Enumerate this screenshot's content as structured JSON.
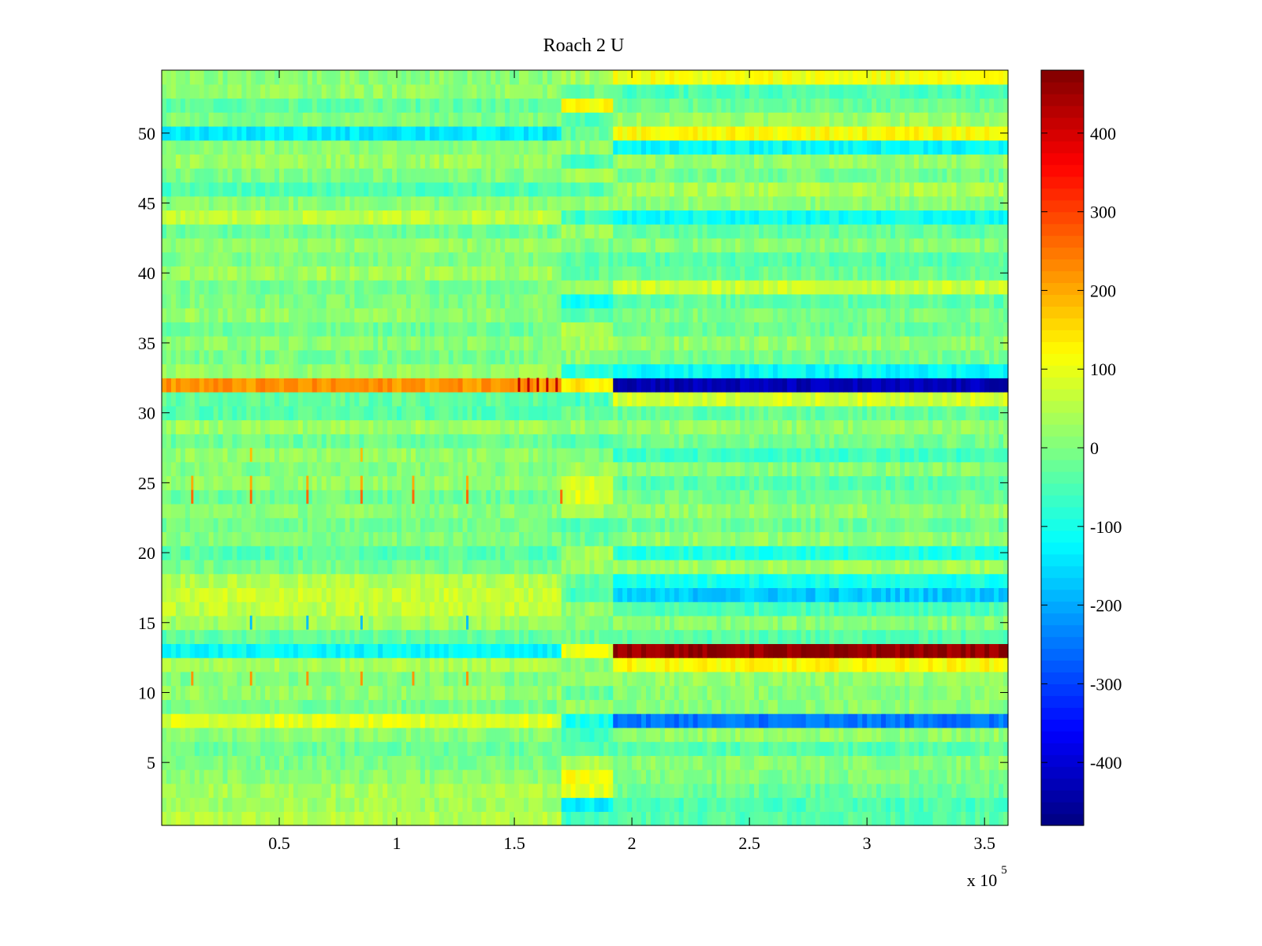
{
  "chart_data": {
    "type": "heatmap",
    "title": "Roach 2 U",
    "xlabel": "",
    "ylabel": "",
    "x_multiplier": "x 10",
    "x_multiplier_exponent": "5",
    "xlim": [
      0,
      3.6
    ],
    "ylim": [
      0.5,
      54.5
    ],
    "rows": 54,
    "x_ticks": [
      {
        "value": 0.5,
        "label": "0.5"
      },
      {
        "value": 1,
        "label": "1"
      },
      {
        "value": 1.5,
        "label": "1.5"
      },
      {
        "value": 2,
        "label": "2"
      },
      {
        "value": 2.5,
        "label": "2.5"
      },
      {
        "value": 3,
        "label": "3"
      },
      {
        "value": 3.5,
        "label": "3.5"
      }
    ],
    "y_ticks": [
      {
        "value": 5,
        "label": "5"
      },
      {
        "value": 10,
        "label": "10"
      },
      {
        "value": 15,
        "label": "15"
      },
      {
        "value": 20,
        "label": "20"
      },
      {
        "value": 25,
        "label": "25"
      },
      {
        "value": 30,
        "label": "30"
      },
      {
        "value": 35,
        "label": "35"
      },
      {
        "value": 40,
        "label": "40"
      },
      {
        "value": 45,
        "label": "45"
      },
      {
        "value": 50,
        "label": "50"
      }
    ],
    "colorbar": {
      "colormap": "jet",
      "clim": [
        -480,
        480
      ],
      "ticks": [
        {
          "value": 400,
          "label": "400"
        },
        {
          "value": 300,
          "label": "300"
        },
        {
          "value": 200,
          "label": "200"
        },
        {
          "value": 100,
          "label": "100"
        },
        {
          "value": 0,
          "label": "0"
        },
        {
          "value": -100,
          "label": "-100"
        },
        {
          "value": -200,
          "label": "-200"
        },
        {
          "value": -300,
          "label": "-300"
        },
        {
          "value": -400,
          "label": "-400"
        }
      ]
    },
    "segment_breaks": [
      0,
      1.71,
      1.92,
      3.6
    ],
    "row_levels": [
      {
        "row": 1,
        "levels": [
          50,
          -60,
          -40
        ]
      },
      {
        "row": 2,
        "levels": [
          30,
          -130,
          -50
        ]
      },
      {
        "row": 3,
        "levels": [
          40,
          100,
          -20
        ]
      },
      {
        "row": 4,
        "levels": [
          10,
          110,
          0
        ]
      },
      {
        "row": 5,
        "levels": [
          0,
          40,
          10
        ]
      },
      {
        "row": 6,
        "levels": [
          -20,
          -40,
          -40
        ]
      },
      {
        "row": 7,
        "levels": [
          10,
          -60,
          20
        ]
      },
      {
        "row": 8,
        "levels": [
          90,
          -100,
          -250
        ]
      },
      {
        "row": 9,
        "levels": [
          -10,
          20,
          10
        ]
      },
      {
        "row": 10,
        "levels": [
          20,
          -30,
          10
        ]
      },
      {
        "row": 11,
        "levels": [
          0,
          30,
          20
        ]
      },
      {
        "row": 12,
        "levels": [
          40,
          10,
          120
        ]
      },
      {
        "row": 13,
        "levels": [
          -120,
          100,
          460
        ]
      },
      {
        "row": 14,
        "levels": [
          -30,
          -20,
          -40
        ]
      },
      {
        "row": 15,
        "levels": [
          30,
          0,
          10
        ]
      },
      {
        "row": 16,
        "levels": [
          60,
          20,
          -50
        ]
      },
      {
        "row": 17,
        "levels": [
          70,
          -50,
          -170
        ]
      },
      {
        "row": 18,
        "levels": [
          50,
          -30,
          -100
        ]
      },
      {
        "row": 19,
        "levels": [
          -10,
          20,
          30
        ]
      },
      {
        "row": 20,
        "levels": [
          -40,
          30,
          -90
        ]
      },
      {
        "row": 21,
        "levels": [
          0,
          -20,
          20
        ]
      },
      {
        "row": 22,
        "levels": [
          -10,
          -40,
          -20
        ]
      },
      {
        "row": 23,
        "levels": [
          10,
          30,
          20
        ]
      },
      {
        "row": 24,
        "levels": [
          -20,
          90,
          -10
        ]
      },
      {
        "row": 25,
        "levels": [
          20,
          80,
          -40
        ]
      },
      {
        "row": 26,
        "levels": [
          0,
          30,
          10
        ]
      },
      {
        "row": 27,
        "levels": [
          20,
          -10,
          -60
        ]
      },
      {
        "row": 28,
        "levels": [
          -20,
          -40,
          -10
        ]
      },
      {
        "row": 29,
        "levels": [
          30,
          20,
          20
        ]
      },
      {
        "row": 30,
        "levels": [
          -40,
          -20,
          -30
        ]
      },
      {
        "row": 31,
        "levels": [
          -30,
          -50,
          80
        ]
      },
      {
        "row": 32,
        "levels": [
          220,
          140,
          -430
        ]
      },
      {
        "row": 33,
        "levels": [
          20,
          -80,
          -120
        ]
      },
      {
        "row": 34,
        "levels": [
          -10,
          10,
          -10
        ]
      },
      {
        "row": 35,
        "levels": [
          10,
          30,
          20
        ]
      },
      {
        "row": 36,
        "levels": [
          -20,
          40,
          -20
        ]
      },
      {
        "row": 37,
        "levels": [
          20,
          -30,
          0
        ]
      },
      {
        "row": 38,
        "levels": [
          0,
          -100,
          -30
        ]
      },
      {
        "row": 39,
        "levels": [
          -10,
          20,
          70
        ]
      },
      {
        "row": 40,
        "levels": [
          30,
          -30,
          -20
        ]
      },
      {
        "row": 41,
        "levels": [
          0,
          -40,
          -40
        ]
      },
      {
        "row": 42,
        "levels": [
          20,
          -10,
          10
        ]
      },
      {
        "row": 43,
        "levels": [
          -20,
          20,
          -30
        ]
      },
      {
        "row": 44,
        "levels": [
          60,
          -60,
          -110
        ]
      },
      {
        "row": 45,
        "levels": [
          10,
          20,
          10
        ]
      },
      {
        "row": 46,
        "levels": [
          -50,
          -40,
          40
        ]
      },
      {
        "row": 47,
        "levels": [
          0,
          30,
          -10
        ]
      },
      {
        "row": 48,
        "levels": [
          30,
          -50,
          20
        ]
      },
      {
        "row": 49,
        "levels": [
          10,
          20,
          -120
        ]
      },
      {
        "row": 50,
        "levels": [
          -140,
          -30,
          120
        ]
      },
      {
        "row": 51,
        "levels": [
          0,
          -50,
          30
        ]
      },
      {
        "row": 52,
        "levels": [
          -30,
          120,
          -20
        ]
      },
      {
        "row": 53,
        "levels": [
          20,
          -20,
          -50
        ]
      },
      {
        "row": 54,
        "levels": [
          10,
          40,
          110
        ]
      }
    ],
    "spikes": [
      {
        "row": 24,
        "x": [
          0.13,
          0.38,
          0.62,
          0.85,
          1.07,
          1.3,
          1.7
        ],
        "value": 260
      },
      {
        "row": 25,
        "x": [
          0.13,
          0.38,
          0.62,
          0.85,
          1.07,
          1.3
        ],
        "value": 200
      },
      {
        "row": 27,
        "x": [
          0.38,
          0.85
        ],
        "value": 180
      },
      {
        "row": 11,
        "x": [
          0.13,
          0.38,
          0.62,
          0.85,
          1.07,
          1.3
        ],
        "value": 220
      },
      {
        "row": 15,
        "x": [
          0.38,
          0.62,
          0.85,
          1.3
        ],
        "value": -180
      },
      {
        "row": 32,
        "x": [
          1.52,
          1.56,
          1.6,
          1.64,
          1.68
        ],
        "value": 420
      }
    ]
  }
}
